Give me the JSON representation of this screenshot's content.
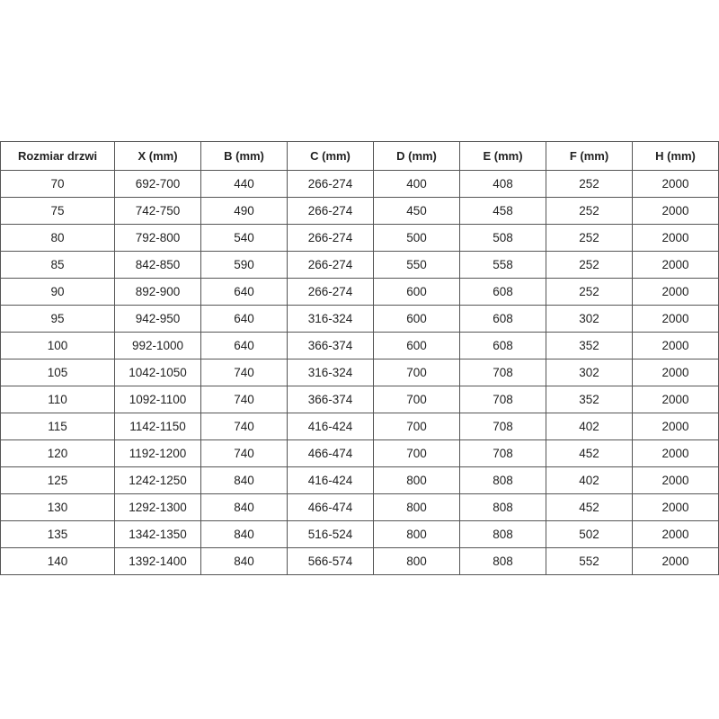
{
  "headers": [
    "Rozmiar drzwi",
    "X (mm)",
    "B (mm)",
    "C (mm)",
    "D (mm)",
    "E (mm)",
    "F (mm)",
    "H (mm)"
  ],
  "rows": [
    [
      "70",
      "692-700",
      "440",
      "266-274",
      "400",
      "408",
      "252",
      "2000"
    ],
    [
      "75",
      "742-750",
      "490",
      "266-274",
      "450",
      "458",
      "252",
      "2000"
    ],
    [
      "80",
      "792-800",
      "540",
      "266-274",
      "500",
      "508",
      "252",
      "2000"
    ],
    [
      "85",
      "842-850",
      "590",
      "266-274",
      "550",
      "558",
      "252",
      "2000"
    ],
    [
      "90",
      "892-900",
      "640",
      "266-274",
      "600",
      "608",
      "252",
      "2000"
    ],
    [
      "95",
      "942-950",
      "640",
      "316-324",
      "600",
      "608",
      "302",
      "2000"
    ],
    [
      "100",
      "992-1000",
      "640",
      "366-374",
      "600",
      "608",
      "352",
      "2000"
    ],
    [
      "105",
      "1042-1050",
      "740",
      "316-324",
      "700",
      "708",
      "302",
      "2000"
    ],
    [
      "110",
      "1092-1100",
      "740",
      "366-374",
      "700",
      "708",
      "352",
      "2000"
    ],
    [
      "115",
      "1142-1150",
      "740",
      "416-424",
      "700",
      "708",
      "402",
      "2000"
    ],
    [
      "120",
      "1192-1200",
      "740",
      "466-474",
      "700",
      "708",
      "452",
      "2000"
    ],
    [
      "125",
      "1242-1250",
      "840",
      "416-424",
      "800",
      "808",
      "402",
      "2000"
    ],
    [
      "130",
      "1292-1300",
      "840",
      "466-474",
      "800",
      "808",
      "452",
      "2000"
    ],
    [
      "135",
      "1342-1350",
      "840",
      "516-524",
      "800",
      "808",
      "502",
      "2000"
    ],
    [
      "140",
      "1392-1400",
      "840",
      "566-574",
      "800",
      "808",
      "552",
      "2000"
    ]
  ]
}
